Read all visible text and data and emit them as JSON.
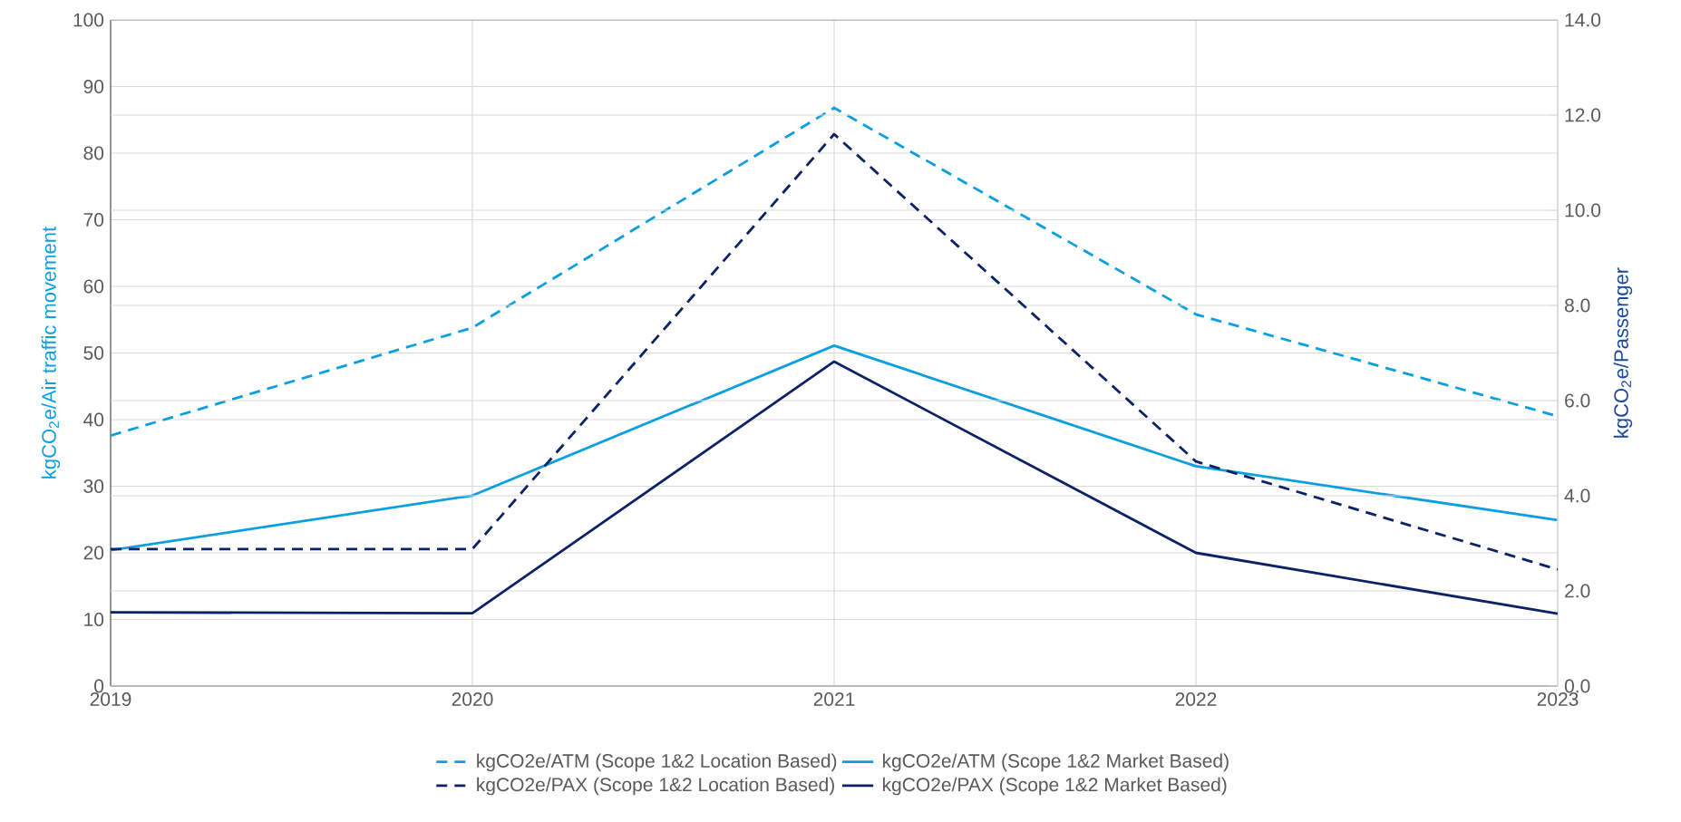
{
  "chart_data": {
    "type": "line",
    "x": [
      2019,
      2020,
      2021,
      2022,
      2023
    ],
    "xlim": [
      2019,
      2023
    ],
    "xticks": [
      2019,
      2020,
      2021,
      2022,
      2023
    ],
    "ylabel": "kgCO$_{2}$e/Air traffic movement",
    "y2label": "kgCO$_{2}$e/Passenger",
    "ylim": [
      0,
      100
    ],
    "yticks": [
      0,
      10,
      20,
      30,
      40,
      50,
      60,
      70,
      80,
      90,
      100
    ],
    "y2lim": [
      0,
      14
    ],
    "y2ticks": [
      {
        "value": 0,
        "label": "0.0"
      },
      {
        "value": 2,
        "label": "2.0"
      },
      {
        "value": 4,
        "label": "4.0"
      },
      {
        "value": 6,
        "label": "6.0"
      },
      {
        "value": 8,
        "label": "8.0"
      },
      {
        "value": 10,
        "label": "10.0"
      },
      {
        "value": 12,
        "label": "12.0"
      },
      {
        "value": 14,
        "label": "14.0"
      }
    ],
    "grid": true,
    "legend": "bottom",
    "series": [
      {
        "name": "kgCO2e/ATM (Scope 1&2 Location Based)",
        "color": "#0a9fe0",
        "line_style": "dashed",
        "values": [
          37.6,
          53.8,
          86.8,
          55.8,
          40.5
        ]
      },
      {
        "name": "kgCO2e/ATM (Scope 1&2 Market Based)",
        "color": "#0a9fe0",
        "line_style": "solid",
        "values": [
          20.4,
          28.6,
          51.1,
          33.0,
          24.9
        ]
      },
      {
        "name": "kgCO2e/PAX (Scope 1&2 Location Based)",
        "color": "#0b2265",
        "line_style": "dashed",
        "axis": "y2",
        "values": [
          2.88,
          2.88,
          11.6,
          4.72,
          2.45
        ]
      },
      {
        "name": "kgCO2e/PAX (Scope 1&2 Market Based)",
        "color": "#0b2265",
        "line_style": "solid",
        "axis": "y2",
        "values": [
          1.55,
          1.53,
          6.82,
          2.8,
          1.52
        ]
      }
    ]
  }
}
